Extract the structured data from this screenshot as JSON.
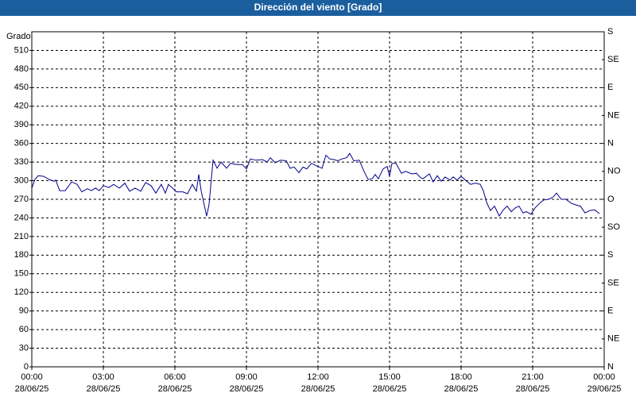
{
  "chart_data": {
    "type": "line",
    "title": "Dirección del viento [Grado]",
    "y_label": "Grado",
    "xlim": [
      0,
      24
    ],
    "xticks": [
      {
        "value": 0,
        "label": [
          "00:00",
          "28/06/25"
        ]
      },
      {
        "value": 3,
        "label": [
          "03:00",
          "28/06/25"
        ]
      },
      {
        "value": 6,
        "label": [
          "06:00",
          "28/06/25"
        ]
      },
      {
        "value": 9,
        "label": [
          "09:00",
          "28/06/25"
        ]
      },
      {
        "value": 12,
        "label": [
          "12:00",
          "28/06/25"
        ]
      },
      {
        "value": 15,
        "label": [
          "15:00",
          "28/06/25"
        ]
      },
      {
        "value": 18,
        "label": [
          "18:00",
          "28/06/25"
        ]
      },
      {
        "value": 21,
        "label": [
          "21:00",
          "28/06/25"
        ]
      },
      {
        "value": 24,
        "label": [
          "00:00",
          "29/06/25"
        ]
      }
    ],
    "ylim": [
      0,
      540
    ],
    "yticks": [
      0,
      30,
      60,
      90,
      120,
      150,
      180,
      210,
      240,
      270,
      300,
      330,
      360,
      390,
      420,
      450,
      480,
      510
    ],
    "y2lim": [
      0,
      540
    ],
    "y2ticks": [
      {
        "value": 0,
        "label": "N"
      },
      {
        "value": 45,
        "label": "NE"
      },
      {
        "value": 90,
        "label": "E"
      },
      {
        "value": 135,
        "label": "SE"
      },
      {
        "value": 180,
        "label": "S"
      },
      {
        "value": 225,
        "label": "SO"
      },
      {
        "value": 270,
        "label": "O"
      },
      {
        "value": 315,
        "label": "NO"
      },
      {
        "value": 360,
        "label": "N"
      },
      {
        "value": 405,
        "label": "NE"
      },
      {
        "value": 450,
        "label": "E"
      },
      {
        "value": 495,
        "label": "SE"
      },
      {
        "value": 540,
        "label": "S"
      }
    ],
    "grid": true,
    "series": [
      {
        "color": "#00008b",
        "x": [
          0,
          0.13,
          0.27,
          0.5,
          0.73,
          0.93,
          1,
          1.17,
          1.4,
          1.67,
          1.9,
          2.1,
          2.33,
          2.5,
          2.67,
          2.83,
          3,
          3.23,
          3.43,
          3.67,
          3.9,
          4.1,
          4.33,
          4.57,
          4.77,
          5,
          5.2,
          5.43,
          5.6,
          5.73,
          5.93,
          6.07,
          6.33,
          6.53,
          6.73,
          6.9,
          7,
          7.1,
          7.33,
          7.43,
          7.6,
          7.77,
          7.93,
          8.17,
          8.33,
          8.6,
          8.83,
          9,
          9.17,
          9.4,
          9.67,
          9.87,
          10,
          10.2,
          10.43,
          10.67,
          10.83,
          11,
          11.2,
          11.37,
          11.53,
          11.73,
          11.93,
          12.17,
          12.33,
          12.5,
          12.67,
          12.83,
          13,
          13.2,
          13.33,
          13.5,
          13.73,
          13.93,
          14.1,
          14.27,
          14.4,
          14.53,
          14.73,
          14.9,
          15,
          15.1,
          15.27,
          15.5,
          15.67,
          15.93,
          16.13,
          16.27,
          16.4,
          16.67,
          16.83,
          17,
          17.17,
          17.33,
          17.53,
          17.67,
          17.83,
          18,
          18.23,
          18.4,
          18.6,
          18.8,
          18.93,
          19.07,
          19.23,
          19.4,
          19.6,
          19.77,
          19.93,
          20.1,
          20.27,
          20.43,
          20.6,
          20.73,
          20.93,
          21.1,
          21.3,
          21.47,
          21.67,
          21.87,
          22,
          22.2,
          22.4,
          22.6,
          22.8,
          23,
          23.2,
          23.4,
          23.6,
          23.8
        ],
        "values": [
          288,
          302,
          308,
          307,
          302,
          299,
          301,
          284,
          284,
          298,
          294,
          282,
          287,
          284,
          288,
          284,
          292,
          289,
          294,
          288,
          296,
          283,
          288,
          283,
          297,
          292,
          280,
          294,
          280,
          294,
          287,
          282,
          282,
          279,
          294,
          283,
          310,
          284,
          243,
          261,
          333,
          320,
          330,
          320,
          328,
          326,
          326,
          319,
          335,
          333,
          334,
          330,
          337,
          329,
          333,
          332,
          320,
          322,
          313,
          322,
          319,
          328,
          324,
          320,
          341,
          335,
          334,
          332,
          335,
          337,
          344,
          332,
          333,
          315,
          302,
          303,
          310,
          303,
          319,
          323,
          307,
          328,
          328,
          312,
          315,
          311,
          312,
          306,
          303,
          311,
          298,
          308,
          299,
          306,
          301,
          306,
          301,
          307,
          299,
          294,
          296,
          294,
          284,
          265,
          252,
          259,
          243,
          253,
          259,
          250,
          256,
          259,
          248,
          250,
          246,
          256,
          264,
          269,
          270,
          274,
          280,
          270,
          270,
          264,
          261,
          259,
          248,
          252,
          253,
          247
        ]
      }
    ]
  }
}
